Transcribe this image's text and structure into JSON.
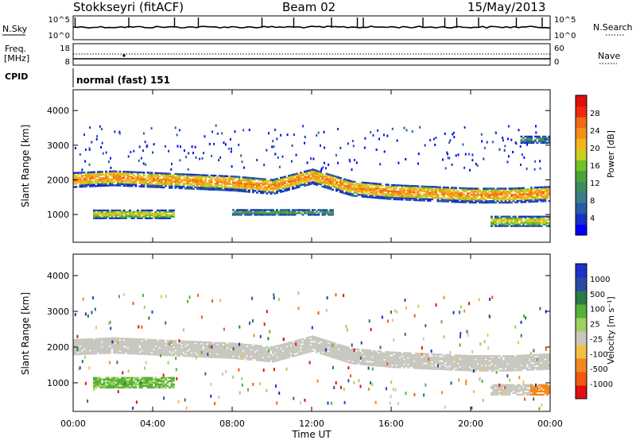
{
  "header": {
    "station": "Stokkseyri (fitACF)",
    "beam": "Beam 02",
    "date": "15/May/2013"
  },
  "top_panels": {
    "nsky_label": "N.Sky",
    "nsky_ticks": [
      "10^5",
      "10^0"
    ],
    "nsearch_label": "N.Search",
    "nsearch_ticks": [
      "10^5",
      "10^0"
    ],
    "freq_label": "Freq.",
    "freq_unit": "[MHz]",
    "freq_ticks": [
      "18",
      "8"
    ],
    "nave_label": "Nave",
    "nave_ticks": [
      "60",
      "0"
    ],
    "cpid_label": "CPID",
    "cpid_text": "normal (fast) 151"
  },
  "chart_data": [
    {
      "type": "heatmap",
      "name": "power",
      "ylabel": "Slant Range [km]",
      "xlabel": "",
      "ylim": [
        200,
        4600
      ],
      "yticks": [
        "1000",
        "2000",
        "3000",
        "4000"
      ],
      "xlim_hours": [
        0,
        24
      ],
      "colorbar": {
        "label": "Power [dB]",
        "ticks": [
          "4",
          "8",
          "12",
          "16",
          "20",
          "24",
          "28"
        ],
        "colors": [
          "#0000ff",
          "#1530c8",
          "#2a5aa6",
          "#3a7d8a",
          "#3e8c5e",
          "#4aa43a",
          "#74c22a",
          "#c8d01e",
          "#f4b41a",
          "#f4901a",
          "#f06a14",
          "#ec2a12",
          "#e01010"
        ]
      },
      "bands": [
        {
          "t0": 0.0,
          "t1": 24.0,
          "center_km": [
            2000,
            2050,
            2000,
            1950,
            1900,
            1800,
            2100,
            1750,
            1650,
            1600,
            1550,
            1550,
            1600
          ],
          "width_km": 450,
          "power_db": 18
        },
        {
          "t0": 1.0,
          "t1": 5.0,
          "center_km": 1000,
          "width_km": 250,
          "power_db": 14
        },
        {
          "t0": 8.0,
          "t1": 13.0,
          "center_km": 1050,
          "width_km": 150,
          "power_db": 8
        },
        {
          "t0": 21.0,
          "t1": 24.0,
          "center_km": 800,
          "width_km": 300,
          "power_db": 14
        },
        {
          "t0": 22.5,
          "t1": 24.0,
          "center_km": 3150,
          "width_km": 200,
          "power_db": 6
        }
      ]
    },
    {
      "type": "heatmap",
      "name": "velocity",
      "ylabel": "Slant Range [km]",
      "xlabel": "Time UT",
      "ylim": [
        200,
        4600
      ],
      "yticks": [
        "1000",
        "2000",
        "3000",
        "4000"
      ],
      "xticks": [
        "00:00",
        "04:00",
        "08:00",
        "12:00",
        "16:00",
        "20:00",
        "00:00"
      ],
      "colorbar": {
        "label": "Velocity [m s⁻¹]",
        "ticks": [
          "1000",
          "500",
          "100",
          "25",
          "-25",
          "-100",
          "-500",
          "-1000"
        ],
        "colors": [
          "#2030c8",
          "#2a4aa6",
          "#2a7a4a",
          "#58b038",
          "#a0d060",
          "#c8c8c0",
          "#f4c040",
          "#f48820",
          "#f05a10",
          "#e01010"
        ]
      },
      "ground_scatter_band": {
        "t0": 0.0,
        "t1": 24.0,
        "width_km": 450
      },
      "green_patch": {
        "t0": 1.0,
        "t1": 5.0,
        "center_km": 1000,
        "velocity_ms": 100
      }
    }
  ]
}
